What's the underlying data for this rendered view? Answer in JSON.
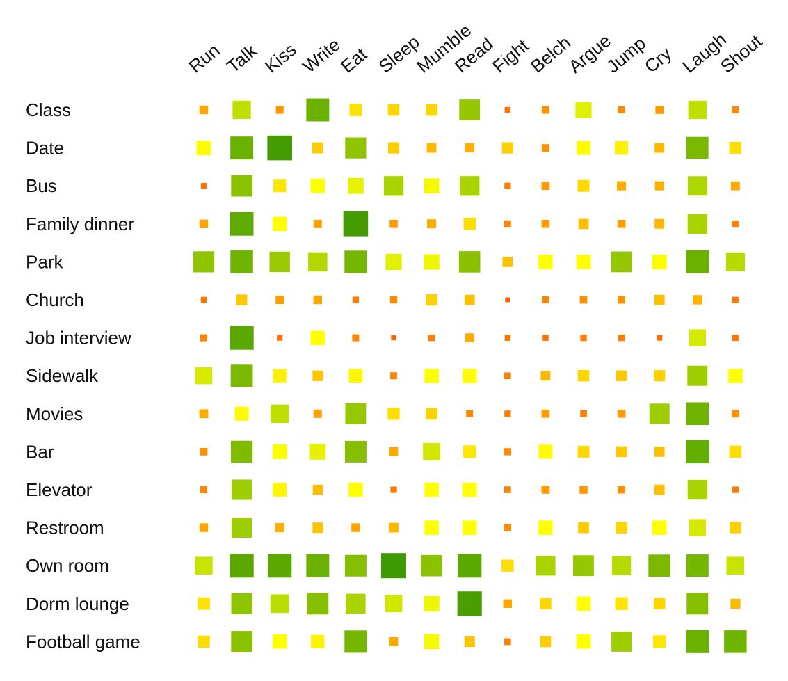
{
  "chart_data": {
    "type": "heatmap",
    "title": "",
    "xlabel": "",
    "ylabel": "",
    "value_range": [
      1,
      9
    ],
    "columns": [
      "Run",
      "Talk",
      "Kiss",
      "Write",
      "Eat",
      "Sleep",
      "Mumble",
      "Read",
      "Fight",
      "Belch",
      "Argue",
      "Jump",
      "Cry",
      "Laugh",
      "Shout"
    ],
    "rows": [
      "Class",
      "Date",
      "Bus",
      "Family dinner",
      "Park",
      "Church",
      "Job interview",
      "Sidewalk",
      "Movies",
      "Bar",
      "Elevator",
      "Restroom",
      "Own room",
      "Dorm lounge",
      "Football game"
    ],
    "values": [
      [
        2.9,
        6.5,
        2.6,
        8.2,
        4.3,
        4.0,
        4.0,
        7.4,
        1.9,
        2.5,
        5.7,
        2.3,
        2.7,
        6.5,
        2.3
      ],
      [
        5.1,
        8.2,
        8.9,
        3.8,
        7.5,
        3.9,
        3.3,
        3.1,
        3.9,
        2.5,
        4.9,
        4.7,
        3.3,
        7.9,
        4.2
      ],
      [
        1.9,
        7.6,
        4.4,
        5.0,
        5.6,
        7.0,
        5.3,
        7.0,
        2.1,
        2.7,
        4.1,
        3.1,
        3.1,
        6.9,
        3.0
      ],
      [
        2.9,
        8.4,
        5.0,
        2.8,
        8.9,
        2.7,
        3.1,
        4.2,
        2.3,
        2.7,
        3.5,
        2.7,
        3.3,
        7.0,
        2.2
      ],
      [
        7.5,
        8.1,
        7.3,
        6.8,
        8.0,
        5.7,
        5.4,
        7.6,
        3.5,
        5.0,
        5.0,
        7.4,
        5.1,
        8.2,
        6.7
      ],
      [
        1.9,
        3.7,
        2.8,
        2.9,
        2.1,
        2.4,
        3.9,
        3.5,
        1.5,
        2.3,
        2.5,
        2.5,
        3.5,
        3.2,
        2.0
      ],
      [
        2.3,
        8.5,
        1.8,
        5.0,
        2.3,
        1.6,
        2.1,
        3.0,
        1.9,
        1.9,
        2.1,
        2.1,
        1.8,
        6.0,
        2.0
      ],
      [
        6.0,
        7.9,
        4.7,
        3.6,
        4.8,
        2.3,
        5.0,
        5.0,
        2.2,
        3.3,
        4.0,
        3.7,
        3.9,
        7.2,
        5.0
      ],
      [
        3.0,
        4.9,
        6.5,
        2.8,
        7.4,
        4.2,
        4.0,
        2.3,
        2.1,
        2.7,
        2.2,
        2.7,
        7.2,
        8.1,
        2.5
      ],
      [
        2.5,
        7.8,
        5.1,
        5.6,
        7.7,
        3.0,
        6.1,
        4.4,
        2.4,
        4.9,
        4.1,
        3.7,
        3.5,
        8.3,
        4.2
      ],
      [
        2.3,
        7.2,
        4.8,
        3.4,
        5.0,
        2.1,
        5.0,
        5.0,
        2.2,
        2.7,
        2.7,
        2.5,
        3.5,
        7.0,
        2.1
      ],
      [
        2.9,
        7.2,
        3.1,
        3.6,
        2.9,
        3.3,
        5.0,
        5.0,
        2.4,
        5.0,
        3.8,
        4.0,
        5.0,
        6.0,
        3.9
      ],
      [
        6.3,
        8.5,
        8.5,
        8.2,
        7.7,
        9.0,
        7.6,
        8.5,
        4.2,
        7.0,
        7.4,
        6.7,
        7.9,
        8.0,
        6.3
      ],
      [
        4.3,
        7.5,
        6.6,
        7.7,
        7.0,
        6.1,
        5.4,
        8.8,
        2.9,
        4.0,
        5.0,
        4.4,
        4.0,
        7.7,
        3.4
      ],
      [
        4.2,
        7.6,
        5.0,
        4.7,
        8.0,
        3.0,
        5.2,
        3.6,
        2.2,
        3.8,
        5.0,
        7.2,
        4.4,
        8.2,
        8.1
      ]
    ],
    "size_encodes_value": true,
    "color_scale": [
      "#ff4400",
      "#ffaa00",
      "#ffff00",
      "#aad400",
      "#3f9900"
    ],
    "legend": "none",
    "grid": false
  }
}
